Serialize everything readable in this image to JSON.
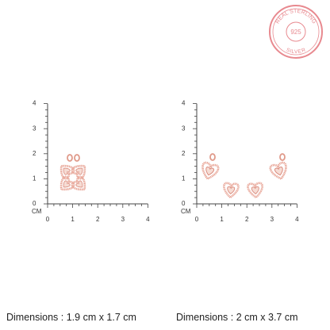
{
  "badge": {
    "top_text": "REAL STERLING",
    "center_text": "925",
    "bottom_text": "SILVER"
  },
  "panels": [
    {
      "unit": "CM",
      "xticks": [
        "0",
        "1",
        "2",
        "3",
        "4"
      ],
      "yticks": [
        "0",
        "1",
        "2",
        "3",
        "4"
      ],
      "dimensions": "Dimensions : 1.9 cm x 1.7 cm"
    },
    {
      "unit": "CM",
      "xticks": [
        "0",
        "1",
        "2",
        "3",
        "4"
      ],
      "yticks": [
        "0",
        "1",
        "2",
        "3",
        "4"
      ],
      "dimensions": "Dimensions : 2 cm x 3.7 cm"
    }
  ]
}
